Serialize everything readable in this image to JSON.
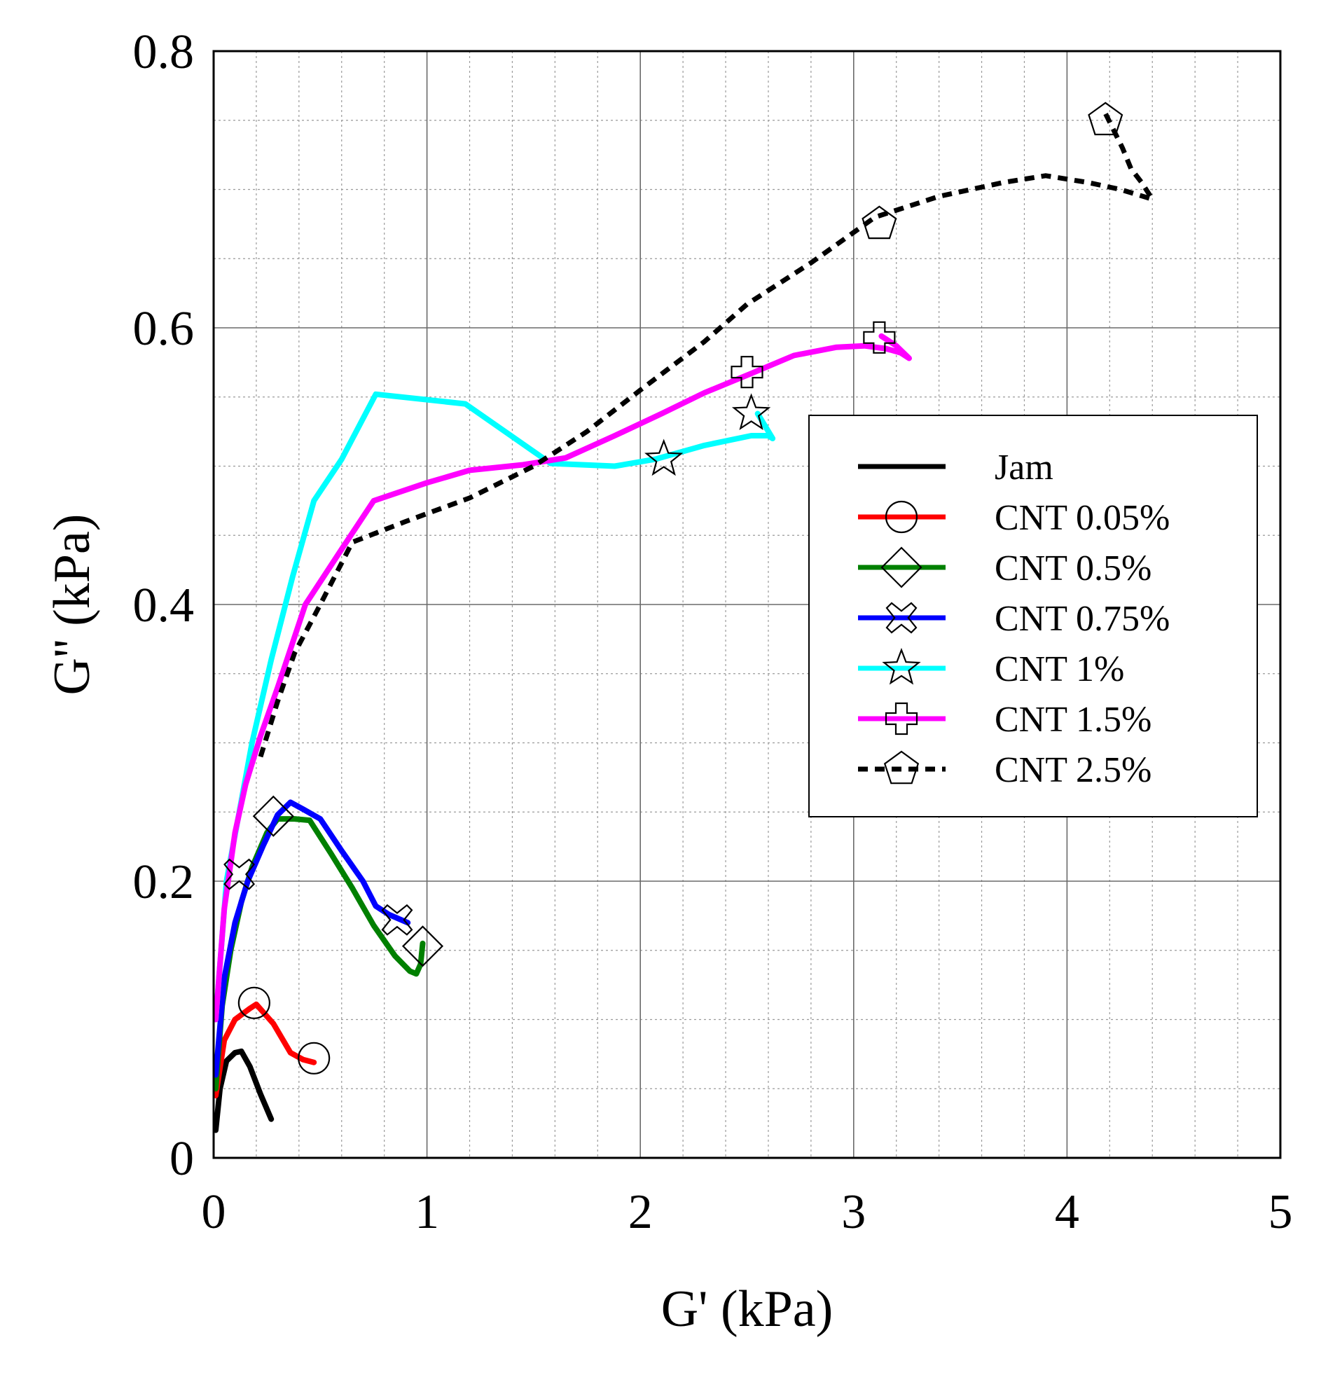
{
  "chart_data": {
    "type": "line",
    "title": "",
    "xlabel": "G' (kPa)",
    "ylabel": "G'' (kPa)",
    "xlim": [
      0,
      5
    ],
    "ylim": [
      0,
      0.8
    ],
    "xticks": [
      0,
      1,
      2,
      3,
      4,
      5
    ],
    "yticks": [
      0,
      0.2,
      0.4,
      0.6,
      0.8
    ],
    "xtick_labels": [
      "0",
      "1",
      "2",
      "3",
      "4",
      "5"
    ],
    "ytick_labels": [
      "0",
      "0.2",
      "0.4",
      "0.6",
      "0.8"
    ],
    "grid": true,
    "minor_grid": true,
    "legend_position": "right",
    "series": [
      {
        "name": "Jam",
        "color": "#000000",
        "dash": "solid",
        "marker": "none",
        "x": [
          0.01,
          0.03,
          0.06,
          0.1,
          0.13,
          0.17,
          0.22,
          0.27
        ],
        "y": [
          0.02,
          0.05,
          0.07,
          0.076,
          0.077,
          0.066,
          0.046,
          0.028
        ],
        "marker_points": []
      },
      {
        "name": "CNT 0.05%",
        "color": "#ff0000",
        "dash": "solid",
        "marker": "circle",
        "x": [
          0.01,
          0.05,
          0.1,
          0.17,
          0.2,
          0.28,
          0.36,
          0.42,
          0.47
        ],
        "y": [
          0.045,
          0.085,
          0.1,
          0.108,
          0.111,
          0.097,
          0.076,
          0.071,
          0.069
        ],
        "marker_points": [
          [
            0.19,
            0.112
          ],
          [
            0.47,
            0.072
          ]
        ]
      },
      {
        "name": "CNT 0.5%",
        "color": "#008000",
        "dash": "solid",
        "marker": "diamond",
        "x": [
          0.01,
          0.04,
          0.08,
          0.13,
          0.18,
          0.25,
          0.3,
          0.38,
          0.45,
          0.55,
          0.65,
          0.75,
          0.85,
          0.92,
          0.95,
          0.97,
          0.98
        ],
        "y": [
          0.05,
          0.11,
          0.15,
          0.185,
          0.21,
          0.235,
          0.245,
          0.245,
          0.244,
          0.22,
          0.195,
          0.168,
          0.146,
          0.135,
          0.133,
          0.14,
          0.155
        ],
        "marker_points": [
          [
            0.28,
            0.247
          ],
          [
            0.98,
            0.153
          ]
        ]
      },
      {
        "name": "CNT 0.75%",
        "color": "#0000ff",
        "dash": "solid",
        "marker": "x",
        "x": [
          0.01,
          0.05,
          0.1,
          0.16,
          0.23,
          0.3,
          0.36,
          0.42,
          0.5,
          0.6,
          0.7,
          0.76,
          0.82,
          0.88,
          0.91
        ],
        "y": [
          0.06,
          0.13,
          0.17,
          0.2,
          0.225,
          0.248,
          0.257,
          0.252,
          0.245,
          0.222,
          0.2,
          0.182,
          0.176,
          0.172,
          0.17
        ],
        "marker_points": [
          [
            0.12,
            0.205
          ],
          [
            0.86,
            0.172
          ]
        ]
      },
      {
        "name": "CNT 1%",
        "color": "#00ffff",
        "dash": "solid",
        "marker": "star",
        "x": [
          0.01,
          0.06,
          0.12,
          0.18,
          0.27,
          0.37,
          0.47,
          0.6,
          0.76,
          1.18,
          1.58,
          1.88,
          2.07,
          2.3,
          2.52,
          2.6,
          2.62,
          2.55
        ],
        "y": [
          0.1,
          0.2,
          0.25,
          0.3,
          0.36,
          0.42,
          0.475,
          0.505,
          0.552,
          0.545,
          0.502,
          0.5,
          0.505,
          0.515,
          0.522,
          0.522,
          0.52,
          0.538
        ],
        "marker_points": [
          [
            2.11,
            0.505
          ],
          [
            2.52,
            0.538
          ]
        ]
      },
      {
        "name": "CNT 1.5%",
        "color": "#ff00ff",
        "dash": "solid",
        "marker": "plus",
        "x": [
          0.01,
          0.05,
          0.1,
          0.15,
          0.22,
          0.3,
          0.43,
          0.6,
          0.75,
          1.0,
          1.2,
          1.45,
          1.65,
          1.88,
          2.1,
          2.3,
          2.52,
          2.72,
          2.92,
          3.05,
          3.15,
          3.22,
          3.26,
          3.2,
          3.13
        ],
        "y": [
          0.1,
          0.18,
          0.235,
          0.27,
          0.305,
          0.34,
          0.4,
          0.44,
          0.475,
          0.488,
          0.497,
          0.501,
          0.506,
          0.522,
          0.538,
          0.553,
          0.567,
          0.58,
          0.586,
          0.587,
          0.585,
          0.582,
          0.578,
          0.587,
          0.594
        ],
        "marker_points": [
          [
            2.5,
            0.568
          ],
          [
            3.12,
            0.593
          ]
        ]
      },
      {
        "name": "CNT 2.5%",
        "color": "#000000",
        "dash": "dashed",
        "marker": "pentagon",
        "x": [
          0.22,
          0.3,
          0.38,
          0.5,
          0.65,
          0.9,
          1.2,
          1.5,
          1.75,
          2.0,
          2.3,
          2.5,
          2.8,
          3.1,
          3.4,
          3.7,
          3.9,
          4.1,
          4.25,
          4.4,
          4.35,
          4.3,
          4.26,
          4.18
        ],
        "y": [
          0.29,
          0.33,
          0.365,
          0.4,
          0.445,
          0.46,
          0.477,
          0.5,
          0.525,
          0.555,
          0.59,
          0.617,
          0.647,
          0.68,
          0.695,
          0.705,
          0.71,
          0.705,
          0.7,
          0.693,
          0.705,
          0.715,
          0.73,
          0.755
        ],
        "marker_points": [
          [
            3.12,
            0.675
          ],
          [
            4.18,
            0.75
          ]
        ]
      }
    ]
  }
}
